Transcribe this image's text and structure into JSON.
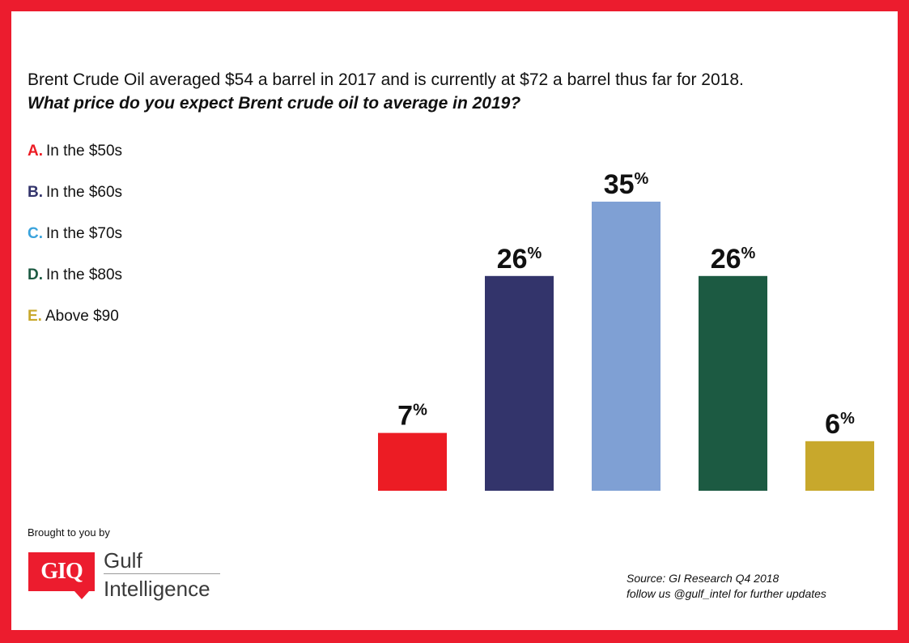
{
  "headline": {
    "statement": "Brent Crude Oil averaged $54 a barrel in 2017 and is currently at $72 a barrel thus far for 2018.",
    "question": "What price do you expect Brent crude oil to average in 2019?"
  },
  "legend": [
    {
      "letter": "A.",
      "label": "In the $50s",
      "color": "#ec1c24"
    },
    {
      "letter": "B.",
      "label": "In the $60s",
      "color": "#33346b"
    },
    {
      "letter": "C.",
      "label": "In the $70s",
      "color": "#3aa3dc"
    },
    {
      "letter": "D.",
      "label": "In the $80s",
      "color": "#1c5a42"
    },
    {
      "letter": "E.",
      "label": "Above $90",
      "color": "#c8a82c"
    }
  ],
  "chart_data": {
    "type": "bar",
    "categories": [
      "A.",
      "B.",
      "C.",
      "D.",
      "E."
    ],
    "values": [
      7,
      26,
      35,
      26,
      6
    ],
    "unit": "%",
    "colors": [
      "#ec1c24",
      "#33346b",
      "#7fa0d4",
      "#1c5a42",
      "#c8a82c"
    ],
    "ylim": [
      0,
      35
    ],
    "grid": false,
    "axes_visible": false,
    "legend_position": "left"
  },
  "footer": {
    "brought_by": "Brought to you by",
    "logo_mark": "GIQ",
    "logo_word1": "Gulf",
    "logo_word2": "Intelligence",
    "source": "Source: GI Research Q4 2018",
    "follow": "follow us @gulf_intel for further updates"
  }
}
